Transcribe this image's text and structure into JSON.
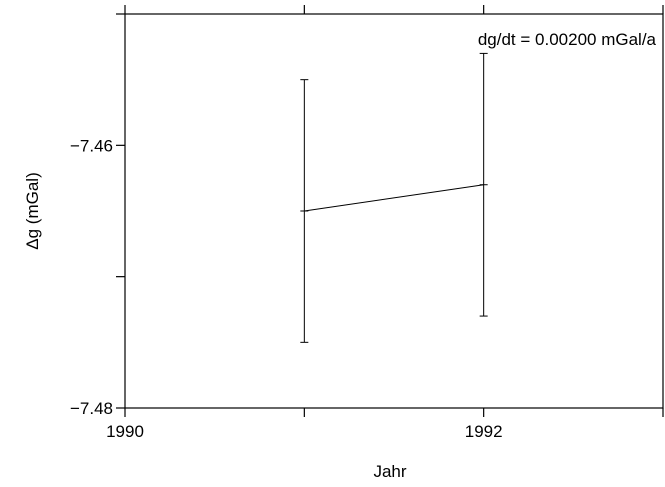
{
  "chart_data": {
    "type": "line",
    "xlabel": "Jahr",
    "ylabel": "Δg (mGal)",
    "xlim": [
      1990,
      1993
    ],
    "ylim": [
      -7.48,
      -7.45
    ],
    "x_ticks": [
      1990,
      1991,
      1992,
      1993
    ],
    "x_tick_labels": [
      "1990",
      "",
      "1992",
      ""
    ],
    "y_ticks": [
      -7.48,
      -7.47,
      -7.46,
      -7.45
    ],
    "y_tick_labels": [
      "−7.48",
      "",
      "−7.46",
      ""
    ],
    "annotation": "dg/dt =  0.00200 mGal/a",
    "grid": false,
    "series": [
      {
        "x": [
          1991,
          1992
        ],
        "y": [
          -7.465,
          -7.463
        ],
        "err_low": [
          -7.475,
          -7.473
        ],
        "err_high": [
          -7.455,
          -7.453
        ]
      }
    ]
  }
}
